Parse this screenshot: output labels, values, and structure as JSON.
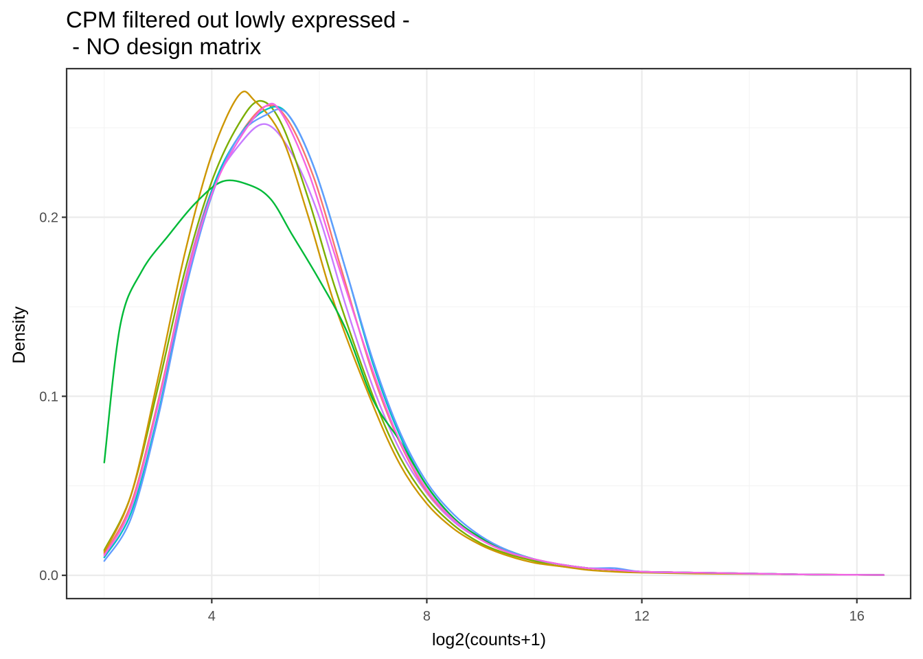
{
  "chart_data": {
    "type": "line",
    "title": "CPM filtered out lowly expressed -\n - NO design matrix",
    "title_lines": [
      "CPM filtered out lowly expressed -",
      " - NO design matrix"
    ],
    "xlabel": "log2(counts+1)",
    "ylabel": "Density",
    "xlim": [
      1.3,
      17.0
    ],
    "ylim": [
      -0.013,
      0.283
    ],
    "x_ticks": [
      4,
      8,
      12,
      16
    ],
    "x_tick_labels": [
      "4",
      "8",
      "12",
      "16"
    ],
    "y_ticks": [
      0.0,
      0.1,
      0.2
    ],
    "y_tick_labels": [
      "0.0",
      "0.1",
      "0.2"
    ],
    "grid": true,
    "legend": "none",
    "series": [
      {
        "color": "#C77CFF",
        "points": [
          [
            2.0,
            0.012
          ],
          [
            2.5,
            0.04
          ],
          [
            3.0,
            0.095
          ],
          [
            3.5,
            0.165
          ],
          [
            4.0,
            0.215
          ],
          [
            4.5,
            0.24
          ],
          [
            5.0,
            0.252
          ],
          [
            5.5,
            0.235
          ],
          [
            6.0,
            0.2
          ],
          [
            6.5,
            0.15
          ],
          [
            7.0,
            0.105
          ],
          [
            7.5,
            0.07
          ],
          [
            8.0,
            0.046
          ],
          [
            8.5,
            0.03
          ],
          [
            9.0,
            0.02
          ],
          [
            9.5,
            0.013
          ],
          [
            10.0,
            0.009
          ],
          [
            10.5,
            0.006
          ],
          [
            11.0,
            0.004
          ],
          [
            11.5,
            0.003
          ],
          [
            12.0,
            0.002
          ],
          [
            13.0,
            0.0015
          ],
          [
            14.0,
            0.001
          ],
          [
            15.0,
            0.0005
          ],
          [
            16.0,
            0.0003
          ],
          [
            16.5,
            0.0002
          ]
        ]
      },
      {
        "color": "#7CAE00",
        "points": [
          [
            2.0,
            0.014
          ],
          [
            2.5,
            0.045
          ],
          [
            3.0,
            0.105
          ],
          [
            3.5,
            0.17
          ],
          [
            4.0,
            0.22
          ],
          [
            4.5,
            0.252
          ],
          [
            4.9,
            0.265
          ],
          [
            5.3,
            0.252
          ],
          [
            5.8,
            0.21
          ],
          [
            6.3,
            0.16
          ],
          [
            7.0,
            0.1
          ],
          [
            7.5,
            0.066
          ],
          [
            8.0,
            0.043
          ],
          [
            8.5,
            0.028
          ],
          [
            9.0,
            0.018
          ],
          [
            9.5,
            0.012
          ],
          [
            10.0,
            0.008
          ],
          [
            10.5,
            0.005
          ],
          [
            11.0,
            0.004
          ],
          [
            11.5,
            0.003
          ],
          [
            12.0,
            0.002
          ],
          [
            13.0,
            0.0015
          ],
          [
            14.0,
            0.001
          ],
          [
            15.0,
            0.0005
          ],
          [
            16.0,
            0.0003
          ],
          [
            16.5,
            0.0002
          ]
        ]
      },
      {
        "color": "#F8766D",
        "points": [
          [
            2.0,
            0.012
          ],
          [
            2.5,
            0.04
          ],
          [
            3.0,
            0.097
          ],
          [
            3.5,
            0.163
          ],
          [
            4.0,
            0.215
          ],
          [
            4.5,
            0.245
          ],
          [
            5.0,
            0.262
          ],
          [
            5.4,
            0.255
          ],
          [
            5.9,
            0.222
          ],
          [
            6.4,
            0.172
          ],
          [
            7.0,
            0.112
          ],
          [
            7.5,
            0.074
          ],
          [
            8.0,
            0.047
          ],
          [
            8.5,
            0.031
          ],
          [
            9.0,
            0.02
          ],
          [
            9.5,
            0.013
          ],
          [
            10.0,
            0.009
          ],
          [
            10.5,
            0.006
          ],
          [
            11.0,
            0.004
          ],
          [
            11.5,
            0.003
          ],
          [
            12.0,
            0.002
          ],
          [
            13.0,
            0.0015
          ],
          [
            14.0,
            0.001
          ],
          [
            15.0,
            0.0005
          ],
          [
            16.0,
            0.0003
          ],
          [
            16.5,
            0.0002
          ]
        ]
      },
      {
        "color": "#00BFC4",
        "points": [
          [
            2.0,
            0.01
          ],
          [
            2.5,
            0.035
          ],
          [
            3.0,
            0.09
          ],
          [
            3.5,
            0.16
          ],
          [
            4.0,
            0.215
          ],
          [
            4.5,
            0.245
          ],
          [
            5.0,
            0.26
          ],
          [
            5.4,
            0.258
          ],
          [
            5.9,
            0.228
          ],
          [
            6.5,
            0.17
          ],
          [
            7.0,
            0.118
          ],
          [
            7.5,
            0.078
          ],
          [
            8.0,
            0.05
          ],
          [
            8.5,
            0.032
          ],
          [
            9.0,
            0.021
          ],
          [
            9.5,
            0.014
          ],
          [
            10.0,
            0.009
          ],
          [
            10.5,
            0.006
          ],
          [
            11.0,
            0.004
          ],
          [
            11.5,
            0.003
          ],
          [
            12.0,
            0.002
          ],
          [
            13.0,
            0.0015
          ],
          [
            14.0,
            0.001
          ],
          [
            15.0,
            0.0005
          ],
          [
            16.0,
            0.0003
          ],
          [
            16.5,
            0.0002
          ]
        ]
      },
      {
        "color": "#CD9600",
        "points": [
          [
            2.0,
            0.013
          ],
          [
            2.5,
            0.045
          ],
          [
            3.0,
            0.11
          ],
          [
            3.5,
            0.18
          ],
          [
            4.0,
            0.235
          ],
          [
            4.5,
            0.268
          ],
          [
            4.8,
            0.265
          ],
          [
            5.3,
            0.245
          ],
          [
            5.8,
            0.2
          ],
          [
            6.3,
            0.15
          ],
          [
            7.0,
            0.095
          ],
          [
            7.5,
            0.062
          ],
          [
            8.0,
            0.04
          ],
          [
            8.5,
            0.026
          ],
          [
            9.0,
            0.017
          ],
          [
            9.5,
            0.011
          ],
          [
            10.0,
            0.007
          ],
          [
            10.5,
            0.005
          ],
          [
            11.0,
            0.003
          ],
          [
            11.5,
            0.002
          ],
          [
            12.0,
            0.0015
          ],
          [
            13.0,
            0.001
          ],
          [
            14.0,
            0.0008
          ],
          [
            15.0,
            0.0005
          ],
          [
            16.0,
            0.0003
          ],
          [
            16.5,
            0.0002
          ]
        ]
      },
      {
        "color": "#00BA38",
        "points": [
          [
            2.0,
            0.063
          ],
          [
            2.3,
            0.14
          ],
          [
            2.7,
            0.17
          ],
          [
            3.2,
            0.19
          ],
          [
            3.7,
            0.208
          ],
          [
            4.2,
            0.22
          ],
          [
            4.7,
            0.218
          ],
          [
            5.1,
            0.21
          ],
          [
            5.5,
            0.19
          ],
          [
            6.0,
            0.165
          ],
          [
            6.5,
            0.137
          ],
          [
            7.0,
            0.098
          ],
          [
            7.5,
            0.075
          ],
          [
            8.0,
            0.05
          ],
          [
            8.5,
            0.032
          ],
          [
            9.0,
            0.021
          ],
          [
            9.5,
            0.014
          ],
          [
            10.0,
            0.009
          ],
          [
            10.5,
            0.006
          ],
          [
            11.0,
            0.004
          ],
          [
            11.5,
            0.003
          ],
          [
            12.0,
            0.002
          ],
          [
            13.0,
            0.0015
          ],
          [
            14.0,
            0.001
          ],
          [
            15.0,
            0.0005
          ],
          [
            16.0,
            0.0003
          ],
          [
            16.5,
            0.0002
          ]
        ]
      },
      {
        "color": "#619CFF",
        "points": [
          [
            2.0,
            0.008
          ],
          [
            2.5,
            0.032
          ],
          [
            3.0,
            0.088
          ],
          [
            3.5,
            0.158
          ],
          [
            4.0,
            0.212
          ],
          [
            4.5,
            0.245
          ],
          [
            5.0,
            0.257
          ],
          [
            5.4,
            0.258
          ],
          [
            5.9,
            0.228
          ],
          [
            6.5,
            0.17
          ],
          [
            7.0,
            0.12
          ],
          [
            7.5,
            0.08
          ],
          [
            8.0,
            0.052
          ],
          [
            8.5,
            0.034
          ],
          [
            9.0,
            0.022
          ],
          [
            9.5,
            0.014
          ],
          [
            10.0,
            0.009
          ],
          [
            10.5,
            0.006
          ],
          [
            11.0,
            0.004
          ],
          [
            11.5,
            0.004
          ],
          [
            12.0,
            0.002
          ],
          [
            13.0,
            0.0015
          ],
          [
            14.0,
            0.001
          ],
          [
            15.0,
            0.0005
          ],
          [
            16.0,
            0.0003
          ],
          [
            16.5,
            0.0002
          ]
        ]
      },
      {
        "color": "#F564E3",
        "points": [
          [
            2.0,
            0.011
          ],
          [
            2.5,
            0.038
          ],
          [
            3.0,
            0.095
          ],
          [
            3.5,
            0.162
          ],
          [
            4.0,
            0.213
          ],
          [
            4.5,
            0.243
          ],
          [
            5.0,
            0.262
          ],
          [
            5.3,
            0.258
          ],
          [
            5.8,
            0.225
          ],
          [
            6.3,
            0.178
          ],
          [
            7.0,
            0.114
          ],
          [
            7.5,
            0.075
          ],
          [
            8.0,
            0.048
          ],
          [
            8.5,
            0.031
          ],
          [
            9.0,
            0.02
          ],
          [
            9.5,
            0.013
          ],
          [
            10.0,
            0.009
          ],
          [
            10.5,
            0.006
          ],
          [
            11.0,
            0.004
          ],
          [
            11.5,
            0.003
          ],
          [
            12.0,
            0.002
          ],
          [
            13.0,
            0.0015
          ],
          [
            14.0,
            0.001
          ],
          [
            15.0,
            0.0005
          ],
          [
            16.0,
            0.0003
          ],
          [
            16.5,
            0.0002
          ]
        ]
      }
    ]
  }
}
